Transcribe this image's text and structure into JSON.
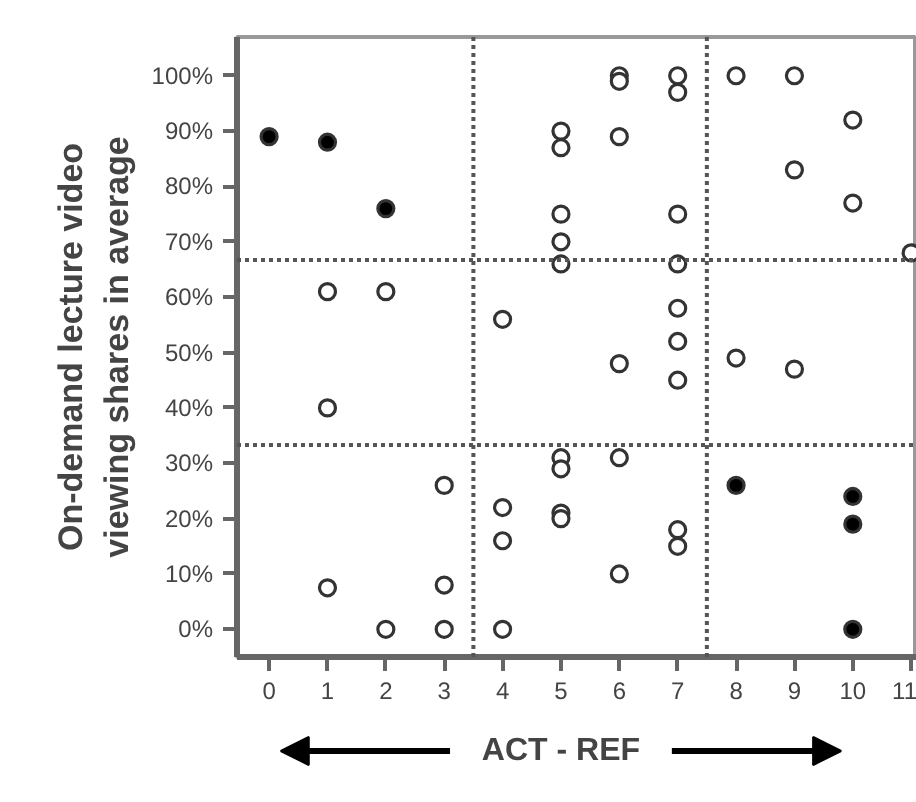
{
  "chart_data": {
    "type": "scatter",
    "xlabel": "ACT - REF",
    "ylabel": "On-demand lecture video\nviewing shares in average",
    "series": [
      {
        "color": "#000000",
        "x": [
          0,
          1,
          2,
          8,
          10,
          10,
          10
        ],
        "values": [
          89,
          88,
          76,
          26,
          24,
          19,
          0
        ]
      },
      {
        "color": "#ffffff",
        "x": [
          1,
          1,
          1,
          2,
          2,
          3,
          3,
          3,
          4,
          4,
          4,
          4,
          5,
          5,
          5,
          5,
          5,
          5,
          5,
          5,
          5,
          6,
          6,
          6,
          6,
          6,
          6,
          7,
          7,
          7,
          7,
          7,
          7,
          7,
          7,
          7,
          8,
          8,
          9,
          9,
          9,
          10,
          10,
          11
        ],
        "values": [
          61,
          40,
          7.5,
          61,
          0,
          26,
          8,
          0,
          56,
          22,
          16,
          0,
          90,
          87,
          75,
          70,
          66,
          31,
          29,
          21,
          20,
          100,
          99,
          89,
          48,
          31,
          10,
          100,
          97,
          75,
          66,
          58,
          52,
          45,
          18,
          15,
          100,
          49,
          100,
          83,
          47,
          92,
          77,
          68
        ]
      }
    ],
    "marker": "circle",
    "grid": false,
    "xlim": [
      -0.55,
      11.1
    ],
    "ylim": [
      -5,
      107
    ],
    "xticks": [
      0,
      1,
      2,
      3,
      4,
      5,
      6,
      7,
      8,
      9,
      10,
      11
    ],
    "yticks": [
      {
        "value": 0,
        "label": "0%"
      },
      {
        "value": 10,
        "label": "10%"
      },
      {
        "value": 20,
        "label": "20%"
      },
      {
        "value": 30,
        "label": "30%"
      },
      {
        "value": 40,
        "label": "40%"
      },
      {
        "value": 50,
        "label": "50%"
      },
      {
        "value": 60,
        "label": "60%"
      },
      {
        "value": 70,
        "label": "70%"
      },
      {
        "value": 80,
        "label": "80%"
      },
      {
        "value": 90,
        "label": "90%"
      },
      {
        "value": 100,
        "label": "100%"
      }
    ],
    "ref_lines": [
      {
        "axis": "y",
        "value": 66.7,
        "line_style": "dotted",
        "color": "#555555"
      },
      {
        "axis": "y",
        "value": 33.3,
        "line_style": "dotted",
        "color": "#555555"
      },
      {
        "axis": "x",
        "value": 3.5,
        "line_style": "dotted",
        "color": "#555555"
      },
      {
        "axis": "x",
        "value": 7.5,
        "line_style": "dotted",
        "color": "#555555"
      }
    ]
  }
}
